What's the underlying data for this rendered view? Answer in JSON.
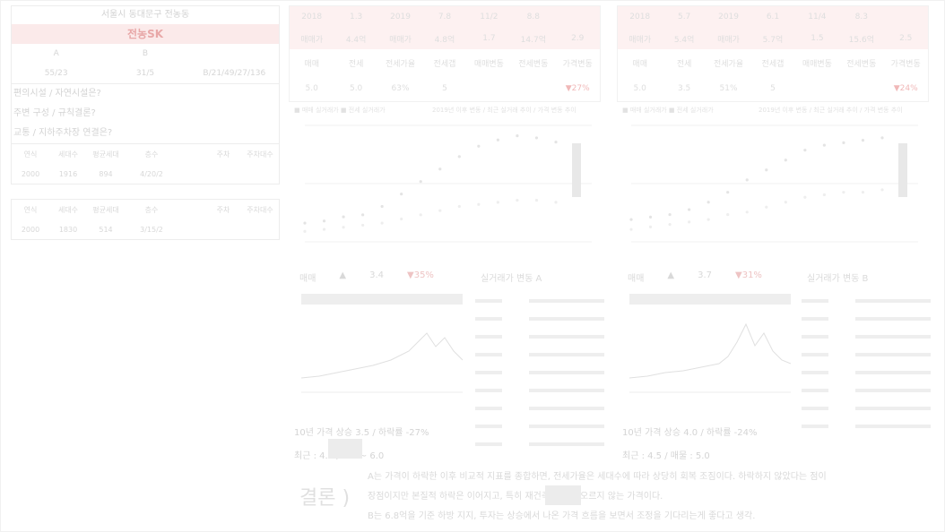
{
  "left_panel": {
    "title": "서울시 동대문구 전농동",
    "name": "전농SK",
    "info_headers": [
      "A",
      "B",
      ""
    ],
    "info_values": [
      "55/23",
      "31/5",
      "B/21/49/27/136"
    ],
    "lines": [
      "편의시설 / 자연시설은?",
      "주변 구성 / 규칙결론?",
      "교통 / 지하주차장 연결은?"
    ],
    "table1_headers": [
      "연식",
      "세대수",
      "평균세대",
      "층수",
      "",
      "주차",
      "주차대수"
    ],
    "table1_values": [
      "2000",
      "1916",
      "894",
      "4/20/2",
      "",
      "",
      ""
    ],
    "table2_headers": [
      "연식",
      "세대수",
      "평균세대",
      "층수",
      "",
      "주차",
      "주차대수"
    ],
    "table2_values": [
      "2000",
      "1830",
      "514",
      "3/15/2",
      "",
      "",
      ""
    ]
  },
  "top_left": {
    "row1": [
      "2018",
      "1.3",
      "2019",
      "7.8",
      "11/2",
      "8.8",
      ""
    ],
    "row2": [
      "매매가",
      "4.4억",
      "매매가",
      "4.8억",
      "1.7",
      "14.7억",
      "2.9"
    ],
    "row3": [
      "매매",
      "전세",
      "전세가율",
      "전세갭",
      "매매변동",
      "전세변동",
      "가격변동"
    ],
    "row4": [
      "5.0",
      "5.0",
      "63%",
      "5",
      "",
      "",
      "▼27%"
    ]
  },
  "top_right": {
    "row1": [
      "2018",
      "5.7",
      "2019",
      "6.1",
      "11/4",
      "8.3",
      ""
    ],
    "row2": [
      "매매가",
      "5.4억",
      "매매가",
      "5.7억",
      "1.5",
      "15.6억",
      "2.5"
    ],
    "row3": [
      "매매",
      "전세",
      "전세가율",
      "전세갭",
      "매매변동",
      "전세변동",
      "가격변동"
    ],
    "row4": [
      "5.0",
      "3.5",
      "51%",
      "5",
      "",
      "",
      "▼24%"
    ]
  },
  "captions": {
    "chart_left_legend": "■ 매매 실거래가 ■ 전세 실거래가",
    "chart_left_note": "2019년 이후 변동 / 최근 실거래 추이 / 가격 변동 추이",
    "chart_right_legend": "■ 매매 실거래가 ■ 전세 실거래가",
    "chart_right_note": "2019년 이후 변동 / 최근 실거래 추이 / 가격 변동 추이"
  },
  "mid_left": {
    "stats": [
      "매매",
      "▲",
      "3.4",
      "▼35%"
    ],
    "list_title": "실거래가 변동 A",
    "footer1": "10년 가격 상승 3.5 / 하락률 -27%",
    "footer2": "최근 : 4.4 / 5.0 ~ 6.0"
  },
  "mid_right": {
    "stats": [
      "매매",
      "▲",
      "3.7",
      "▼31%"
    ],
    "list_title": "실거래가 변동 B",
    "footer1": "10년 가격 상승 4.0 / 하락률 -24%",
    "footer2": "최근 : 4.5 / 매물 : 5.0"
  },
  "conclusion": {
    "label": "결론 )",
    "line1": "A는 가격이 하락한 이후 비교적 지표를 종합하면, 전세가율은 세대수에 따라 상당히 회복 조짐이다. 하락하지 않았다는 점이",
    "line2": "장점이지만 본질적 하락은 이어지고, 특히 재건축은 쉽게 오르지 않는 가격이다.",
    "line3": "B는 6.8억을 기준 하방 지지, 투자는 상승에서 나온 가격 흐름을 보면서 조정을 기다리는게 좋다고 생각."
  },
  "chart_data": [
    {
      "type": "line",
      "series": [
        {
          "values": [
            3.2,
            3.3,
            3.5,
            3.6,
            4.0,
            4.6,
            5.2,
            5.8,
            6.4,
            6.9,
            7.2,
            7.4,
            7.3,
            7.1
          ]
        },
        {
          "values": [
            2.8,
            2.9,
            3.0,
            3.1,
            3.2,
            3.4,
            3.6,
            3.8,
            4.0,
            4.1,
            4.2,
            4.3,
            4.3,
            4.2
          ]
        }
      ],
      "x": [
        "",
        "",
        "",
        "",
        "",
        "",
        "",
        "",
        "",
        "",
        "",
        "",
        "",
        ""
      ]
    },
    {
      "type": "line",
      "series": [
        {
          "values": [
            3.0,
            3.1,
            3.2,
            3.4,
            3.7,
            4.1,
            4.6,
            5.0,
            5.4,
            5.8,
            6.0,
            6.1,
            6.2,
            6.3
          ]
        },
        {
          "values": [
            2.6,
            2.7,
            2.8,
            2.9,
            3.0,
            3.2,
            3.3,
            3.5,
            3.7,
            3.9,
            4.0,
            4.1,
            4.1,
            4.2
          ]
        }
      ],
      "x": [
        "",
        "",
        "",
        "",
        "",
        "",
        "",
        "",
        "",
        "",
        "",
        "",
        "",
        ""
      ]
    }
  ]
}
